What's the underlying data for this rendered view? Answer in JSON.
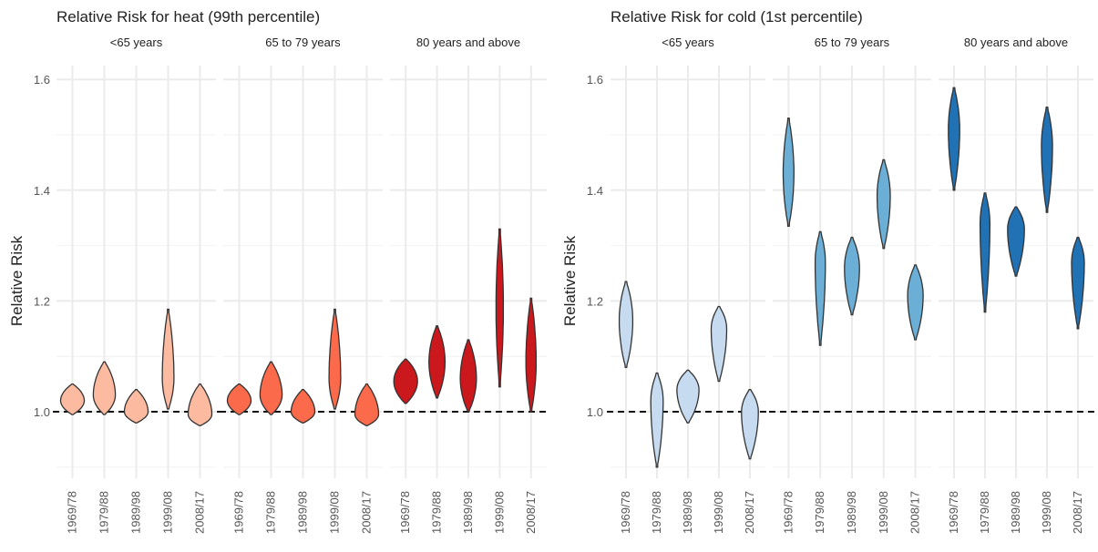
{
  "chart_data": [
    {
      "type": "violin",
      "title": "Relative Risk for heat (99th percentile)",
      "y_label": "Relative Risk",
      "ylim": [
        0.88,
        1.625
      ],
      "yticks": [
        {
          "value": 1,
          "label": "1.0"
        },
        {
          "value": 1.2,
          "label": "1.2"
        },
        {
          "value": 1.4,
          "label": "1.4"
        },
        {
          "value": 1.6,
          "label": "1.6"
        }
      ],
      "minor_yticks": [
        0.9,
        1.1,
        1.3,
        1.5
      ],
      "hline": 1,
      "categories": [
        "1969/78",
        "1979/88",
        "1989/98",
        "1999/08",
        "2008/17"
      ],
      "panels": [
        {
          "label": "<65 years",
          "color": "#fcbba1",
          "min": [
            0.995,
            0.995,
            0.98,
            1.005,
            0.975
          ],
          "peak": [
            1.02,
            1.03,
            1.0,
            1.06,
            0.995
          ],
          "max": [
            1.05,
            1.09,
            1.04,
            1.185,
            1.05
          ]
        },
        {
          "label": "65 to 79 years",
          "color": "#fb6a4a",
          "min": [
            0.995,
            0.995,
            0.98,
            1.005,
            0.975
          ],
          "peak": [
            1.02,
            1.03,
            1.0,
            1.06,
            0.995
          ],
          "max": [
            1.05,
            1.09,
            1.04,
            1.185,
            1.05
          ]
        },
        {
          "label": "80 years and above",
          "color": "#cb181d",
          "min": [
            1.015,
            1.025,
            1.0,
            1.045,
            1.0
          ],
          "peak": [
            1.055,
            1.09,
            1.06,
            1.19,
            1.09
          ],
          "max": [
            1.095,
            1.155,
            1.13,
            1.33,
            1.205
          ]
        }
      ]
    },
    {
      "type": "violin",
      "title": "Relative Risk for cold (1st percentile)",
      "y_label": "Relative Risk",
      "ylim": [
        0.88,
        1.625
      ],
      "yticks": [
        {
          "value": 1,
          "label": "1.0"
        },
        {
          "value": 1.2,
          "label": "1.2"
        },
        {
          "value": 1.4,
          "label": "1.4"
        },
        {
          "value": 1.6,
          "label": "1.6"
        }
      ],
      "minor_yticks": [
        0.9,
        1.1,
        1.3,
        1.5
      ],
      "hline": 1,
      "categories": [
        "1969/78",
        "1979/88",
        "1989/98",
        "1999/08",
        "2008/17"
      ],
      "panels": [
        {
          "label": "<65 years",
          "color": "#c6dbef",
          "min": [
            1.08,
            0.9,
            0.98,
            1.055,
            0.915
          ],
          "peak": [
            1.165,
            1.02,
            1.04,
            1.15,
            1.0
          ],
          "max": [
            1.235,
            1.07,
            1.075,
            1.19,
            1.04
          ]
        },
        {
          "label": "65 to 79 years",
          "color": "#6baed6",
          "min": [
            1.335,
            1.12,
            1.175,
            1.295,
            1.13
          ],
          "peak": [
            1.43,
            1.27,
            1.26,
            1.39,
            1.21
          ],
          "max": [
            1.53,
            1.325,
            1.315,
            1.455,
            1.265
          ]
        },
        {
          "label": "80 years and above",
          "color": "#2171b5",
          "min": [
            1.4,
            1.18,
            1.245,
            1.36,
            1.15
          ],
          "peak": [
            1.51,
            1.34,
            1.33,
            1.48,
            1.27
          ],
          "max": [
            1.585,
            1.395,
            1.37,
            1.55,
            1.315
          ]
        }
      ]
    }
  ]
}
